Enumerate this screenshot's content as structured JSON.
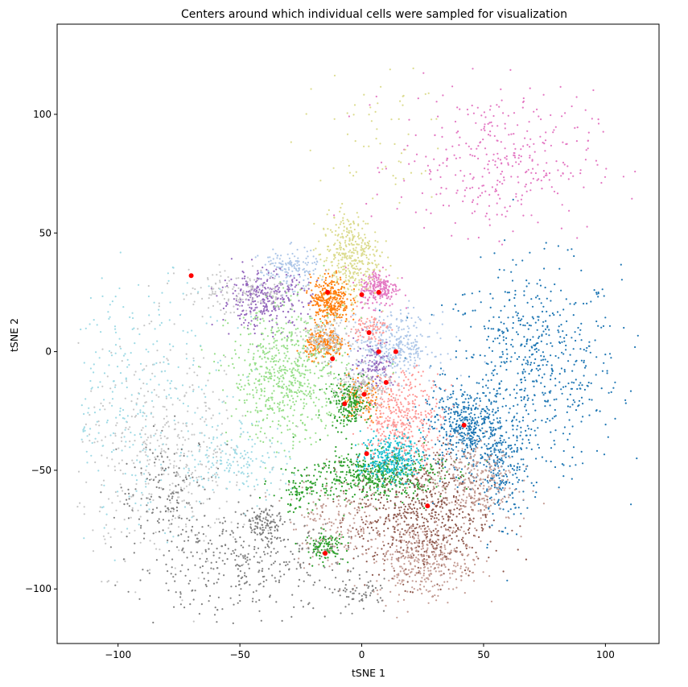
{
  "chart_data": {
    "type": "scatter",
    "title": "Centers around which individual cells were sampled for visualization",
    "xlabel": "tSNE 1",
    "ylabel": "tSNE 2",
    "xlim": [
      -125,
      122
    ],
    "ylim": [
      -123,
      138
    ],
    "xticks": [
      -100,
      -50,
      0,
      50,
      100
    ],
    "yticks": [
      -100,
      -50,
      0,
      50,
      100
    ],
    "xtick_labels": [
      "−100",
      "−50",
      "0",
      "50",
      "100"
    ],
    "ytick_labels": [
      "−100",
      "−50",
      "0",
      "50",
      "100"
    ],
    "grid": false,
    "legend": "none",
    "cluster_colors": {
      "blue": "#1f77b4",
      "orange": "#ff7f0e",
      "green": "#2ca02c",
      "salmon": "#ff9896",
      "purple": "#9467bd",
      "lightblue": "#aec7e8",
      "lightgreen": "#98df8a",
      "pink": "#e377c2",
      "gray": "#7f7f7f",
      "lightgray": "#c7c7c7",
      "olive": "#dbdb8d",
      "cyan": "#17becf",
      "lightcyan": "#9edae5",
      "brown": "#8c564b",
      "tan": "#c49c94",
      "darkorange": "#ff7f0e"
    },
    "clusters": [
      {
        "color": "blue",
        "cx": 70,
        "cy": -8,
        "sx": 18,
        "sy": 22,
        "n": 650
      },
      {
        "color": "blue",
        "cx": 43,
        "cy": -32,
        "sx": 8,
        "sy": 8,
        "n": 450
      },
      {
        "color": "blue",
        "cx": 58,
        "cy": -52,
        "sx": 5,
        "sy": 10,
        "n": 200
      },
      {
        "color": "pink",
        "cx": 55,
        "cy": 80,
        "sx": 20,
        "sy": 15,
        "n": 350
      },
      {
        "color": "pink",
        "cx": 7,
        "cy": 27,
        "sx": 4,
        "sy": 4,
        "n": 220
      },
      {
        "color": "olive",
        "cx": -5,
        "cy": 40,
        "sx": 6,
        "sy": 9,
        "n": 380
      },
      {
        "color": "olive",
        "cx": 5,
        "cy": 90,
        "sx": 15,
        "sy": 15,
        "n": 60
      },
      {
        "color": "orange",
        "cx": -13,
        "cy": 22,
        "sx": 4,
        "sy": 5,
        "n": 320
      },
      {
        "color": "orange",
        "cx": -15,
        "cy": 3,
        "sx": 4,
        "sy": 3,
        "n": 220
      },
      {
        "color": "orange",
        "cx": 0,
        "cy": -20,
        "sx": 5,
        "sy": 5,
        "n": 120
      },
      {
        "color": "lightblue",
        "cx": 12,
        "cy": 2,
        "sx": 9,
        "sy": 7,
        "n": 400
      },
      {
        "color": "lightblue",
        "cx": -30,
        "cy": 35,
        "sx": 6,
        "sy": 4,
        "n": 150
      },
      {
        "color": "salmon",
        "cx": 17,
        "cy": -28,
        "sx": 8,
        "sy": 10,
        "n": 420
      },
      {
        "color": "salmon",
        "cx": 3,
        "cy": 10,
        "sx": 4,
        "sy": 3,
        "n": 80
      },
      {
        "color": "purple",
        "cx": -40,
        "cy": 22,
        "sx": 9,
        "sy": 6,
        "n": 330
      },
      {
        "color": "purple",
        "cx": 5,
        "cy": -5,
        "sx": 4,
        "sy": 5,
        "n": 100
      },
      {
        "color": "lightgreen",
        "cx": -30,
        "cy": -10,
        "sx": 12,
        "sy": 14,
        "n": 700
      },
      {
        "color": "green",
        "cx": -5,
        "cy": -22,
        "sx": 4,
        "sy": 5,
        "n": 200
      },
      {
        "color": "green",
        "cx": 5,
        "cy": -52,
        "sx": 14,
        "sy": 5,
        "n": 500
      },
      {
        "color": "green",
        "cx": -15,
        "cy": -82,
        "sx": 4,
        "sy": 3,
        "n": 120
      },
      {
        "color": "green",
        "cx": -25,
        "cy": -60,
        "sx": 6,
        "sy": 4,
        "n": 80
      },
      {
        "color": "cyan",
        "cx": 12,
        "cy": -45,
        "sx": 6,
        "sy": 5,
        "n": 300
      },
      {
        "color": "brown",
        "cx": 25,
        "cy": -70,
        "sx": 14,
        "sy": 13,
        "n": 650
      },
      {
        "color": "tan",
        "cx": 25,
        "cy": -88,
        "sx": 10,
        "sy": 8,
        "n": 350
      },
      {
        "color": "tan",
        "cx": 45,
        "cy": -55,
        "sx": 9,
        "sy": 9,
        "n": 300
      },
      {
        "color": "tan",
        "cx": -10,
        "cy": -70,
        "sx": 10,
        "sy": 10,
        "n": 200
      },
      {
        "color": "lightgray",
        "cx": -80,
        "cy": -45,
        "sx": 18,
        "sy": 22,
        "n": 450
      },
      {
        "color": "lightgray",
        "cx": -15,
        "cy": 5,
        "sx": 5,
        "sy": 4,
        "n": 150
      },
      {
        "color": "lightgray",
        "cx": -50,
        "cy": 25,
        "sx": 12,
        "sy": 5,
        "n": 150
      },
      {
        "color": "lightgray",
        "cx": 0,
        "cy": -15,
        "sx": 6,
        "sy": 4,
        "n": 120
      },
      {
        "color": "lightcyan",
        "cx": -90,
        "cy": -20,
        "sx": 18,
        "sy": 25,
        "n": 300
      },
      {
        "color": "lightcyan",
        "cx": -50,
        "cy": -45,
        "sx": 10,
        "sy": 8,
        "n": 150
      },
      {
        "color": "gray",
        "cx": -50,
        "cy": -90,
        "sx": 22,
        "sy": 10,
        "n": 350
      },
      {
        "color": "gray",
        "cx": -40,
        "cy": -72,
        "sx": 5,
        "sy": 4,
        "n": 120
      },
      {
        "color": "gray",
        "cx": -80,
        "cy": -60,
        "sx": 10,
        "sy": 12,
        "n": 150
      },
      {
        "color": "gray",
        "cx": 0,
        "cy": -102,
        "sx": 5,
        "sy": 3,
        "n": 60
      }
    ],
    "centers": [
      [
        -70,
        32
      ],
      [
        -14,
        25
      ],
      [
        0,
        24
      ],
      [
        7,
        25
      ],
      [
        3,
        8
      ],
      [
        7,
        0
      ],
      [
        14,
        0
      ],
      [
        -12,
        -3
      ],
      [
        10,
        -13
      ],
      [
        -7,
        -22
      ],
      [
        1,
        -18
      ],
      [
        2,
        -43
      ],
      [
        42,
        -31
      ],
      [
        27,
        -65
      ],
      [
        -15,
        -85
      ]
    ],
    "center_color": "#ff0000"
  }
}
